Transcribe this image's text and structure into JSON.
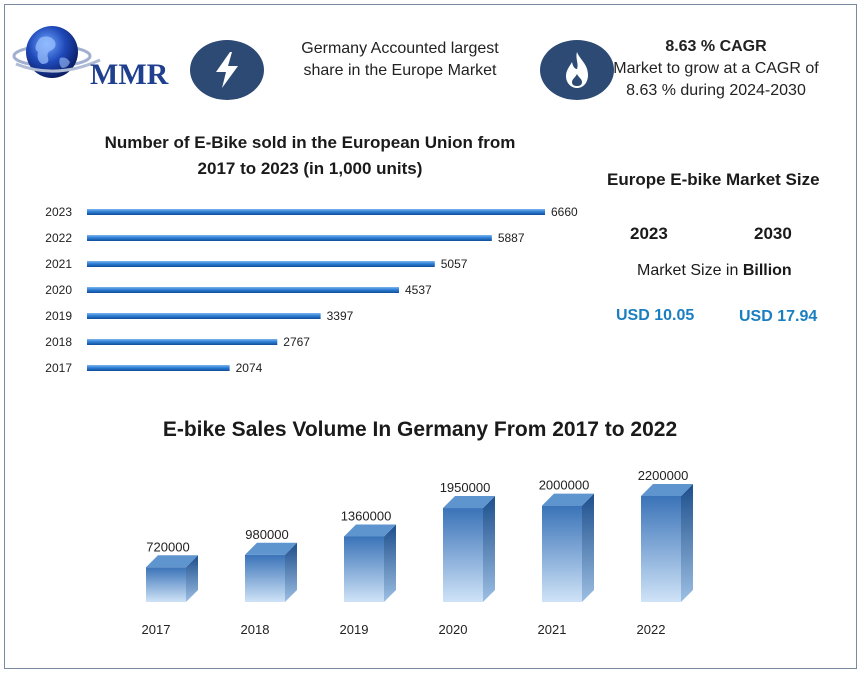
{
  "logo": {
    "text": "MMR",
    "icon": "globe-icon"
  },
  "badges": [
    {
      "icon": "lightning-bolt-icon",
      "text_lines": [
        "Germany Accounted largest",
        "share in the Europe Market"
      ]
    },
    {
      "icon": "flame-icon",
      "title": "8.63 % CAGR",
      "text_lines": [
        "Market to grow at a CAGR of",
        "8.63 % during 2024-2030"
      ]
    }
  ],
  "market_size": {
    "title": "Europe E-bike Market Size",
    "years": [
      "2023",
      "2030"
    ],
    "label_prefix": "Market Size in ",
    "label_bold": "Billion",
    "values": [
      "USD 10.05",
      "USD 17.94"
    ]
  },
  "colors": {
    "accent_blue": "#1a7fc1",
    "badge_navy": "#2c4a73",
    "bar_blue": "#3d86d6"
  },
  "chart_data": [
    {
      "type": "bar",
      "orientation": "horizontal",
      "title_lines": [
        "Number of E-Bike sold in the European Union from",
        "2017 to 2023 (in 1,000 units)"
      ],
      "categories": [
        "2023",
        "2022",
        "2021",
        "2020",
        "2019",
        "2018",
        "2017"
      ],
      "values": [
        6660,
        5887,
        5057,
        4537,
        3397,
        2767,
        2074
      ],
      "xlim": [
        0,
        6660
      ],
      "grid": false,
      "data_labels": true
    },
    {
      "type": "bar",
      "orientation": "vertical",
      "style": "3d",
      "title": "E-bike Sales Volume In Germany From 2017 to 2022",
      "categories": [
        "2017",
        "2018",
        "2019",
        "2020",
        "2021",
        "2022"
      ],
      "values": [
        720000,
        980000,
        1360000,
        1950000,
        2000000,
        2200000
      ],
      "grid": false,
      "data_labels": true
    }
  ]
}
